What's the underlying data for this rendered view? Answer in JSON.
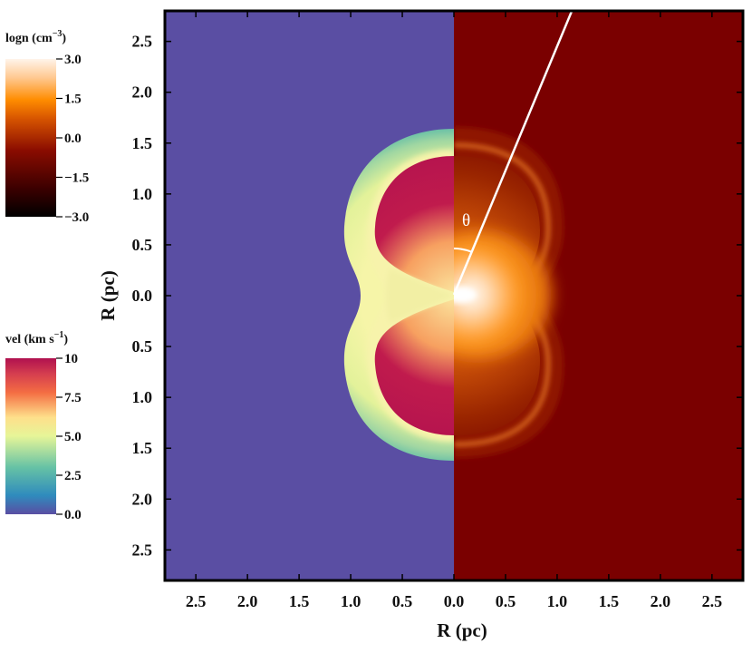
{
  "panel": {
    "left_field": "vel",
    "right_field": "logn",
    "angle_symbol": "θ",
    "left_background_color": "#5a4ea3",
    "right_background_color": "#7a0000"
  },
  "axes": {
    "xlabel": "R  (pc)",
    "ylabel": "R  (pc)",
    "x_tick_labels": [
      "2.5",
      "2.0",
      "1.5",
      "1.0",
      "0.5",
      "0.0",
      "0.5",
      "1.0",
      "1.5",
      "2.0",
      "2.5"
    ],
    "x_tick_values": [
      -2.5,
      -2.0,
      -1.5,
      -1.0,
      -0.5,
      0.0,
      0.5,
      1.0,
      1.5,
      2.0,
      2.5
    ],
    "y_tick_labels": [
      "2.5",
      "2.0",
      "1.5",
      "1.0",
      "0.5",
      "0.0",
      "0.5",
      "1.0",
      "1.5",
      "2.0",
      "2.5"
    ],
    "y_tick_values": [
      2.5,
      2.0,
      1.5,
      1.0,
      0.5,
      0.0,
      -0.5,
      -1.0,
      -1.5,
      -2.0,
      -2.5
    ],
    "xlim": [
      -2.8,
      2.8
    ],
    "ylim": [
      -2.8,
      2.8
    ]
  },
  "colorbars": {
    "density": {
      "title": "logn  (cm",
      "title_exponent": "−3",
      "title_close": ")",
      "tick_labels": [
        "3.0",
        "1.5",
        "0.0",
        "−1.5",
        "−3.0"
      ],
      "range": [
        -3.0,
        3.0
      ],
      "colors": [
        "#000000",
        "#3c0000",
        "#8a0c00",
        "#d65400",
        "#ff8c00",
        "#ffc890",
        "#fff4ea"
      ]
    },
    "velocity": {
      "title": "vel  (km s",
      "title_exponent": "−1",
      "title_close": ")",
      "tick_labels": [
        "10",
        "7.5",
        "5.0",
        "2.5",
        "0.0"
      ],
      "range": [
        0.0,
        10.0
      ],
      "colors": [
        "#5a4ea3",
        "#2f8bbd",
        "#66c2a5",
        "#e6f598",
        "#fee08b",
        "#f46d43",
        "#d53e4f",
        "#b0114f"
      ]
    }
  }
}
